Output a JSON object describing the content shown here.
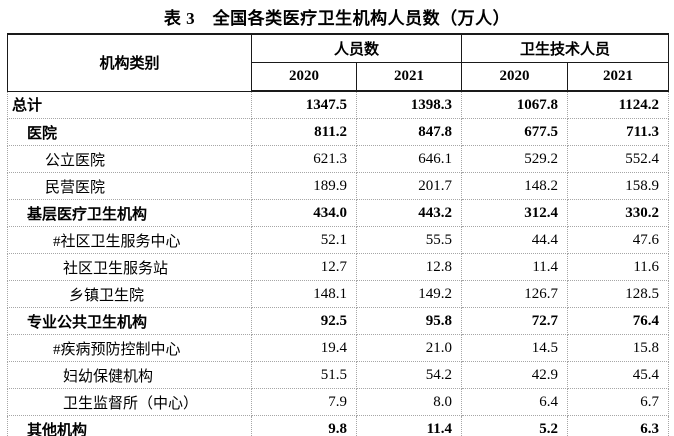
{
  "title": "表 3　全国各类医疗卫生机构人员数（万人）",
  "unit_note": "万人",
  "table": {
    "header": {
      "category": "机构类别",
      "groups": [
        {
          "label": "人员数",
          "years": [
            "2020",
            "2021"
          ]
        },
        {
          "label": "卫生技术人员",
          "years": [
            "2020",
            "2021"
          ]
        }
      ]
    },
    "rows": [
      {
        "label": "总计",
        "bold": true,
        "indent": 0,
        "values": [
          "1347.5",
          "1398.3",
          "1067.8",
          "1124.2"
        ]
      },
      {
        "label": "医院",
        "bold": true,
        "indent": 1,
        "values": [
          "811.2",
          "847.8",
          "677.5",
          "711.3"
        ]
      },
      {
        "label": "公立医院",
        "bold": false,
        "indent": 2,
        "values": [
          "621.3",
          "646.1",
          "529.2",
          "552.4"
        ]
      },
      {
        "label": "民营医院",
        "bold": false,
        "indent": 2,
        "values": [
          "189.9",
          "201.7",
          "148.2",
          "158.9"
        ]
      },
      {
        "label": "基层医疗卫生机构",
        "bold": true,
        "indent": 1,
        "values": [
          "434.0",
          "443.2",
          "312.4",
          "330.2"
        ]
      },
      {
        "label": "#社区卫生服务中心",
        "bold": false,
        "indent": 3,
        "values": [
          "52.1",
          "55.5",
          "44.4",
          "47.6"
        ]
      },
      {
        "label": "社区卫生服务站",
        "bold": false,
        "indent": 4,
        "values": [
          "12.7",
          "12.8",
          "11.4",
          "11.6"
        ]
      },
      {
        "label": "乡镇卫生院",
        "bold": false,
        "indent": 5,
        "values": [
          "148.1",
          "149.2",
          "126.7",
          "128.5"
        ]
      },
      {
        "label": "专业公共卫生机构",
        "bold": true,
        "indent": 1,
        "values": [
          "92.5",
          "95.8",
          "72.7",
          "76.4"
        ]
      },
      {
        "label": "#疾病预防控制中心",
        "bold": false,
        "indent": 3,
        "values": [
          "19.4",
          "21.0",
          "14.5",
          "15.8"
        ]
      },
      {
        "label": "妇幼保健机构",
        "bold": false,
        "indent": 4,
        "values": [
          "51.5",
          "54.2",
          "42.9",
          "45.4"
        ]
      },
      {
        "label": "卫生监督所（中心）",
        "bold": false,
        "indent": 4,
        "values": [
          "7.9",
          "8.0",
          "6.4",
          "6.7"
        ]
      },
      {
        "label": "其他机构",
        "bold": true,
        "indent": 1,
        "values": [
          "9.8",
          "11.4",
          "5.2",
          "6.3"
        ]
      }
    ]
  },
  "colors": {
    "text": "#000000",
    "solid_border": "#1a1a1a",
    "dotted_grid": "#a6a6a6",
    "background": "#ffffff"
  }
}
